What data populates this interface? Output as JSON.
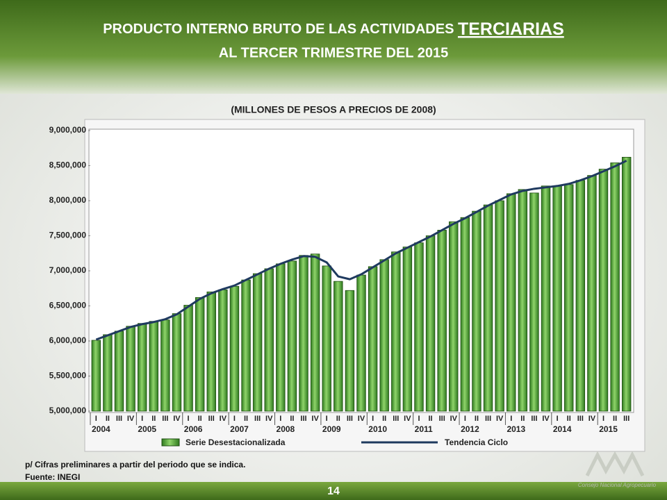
{
  "header": {
    "title_line1": "PRODUCTO INTERNO BRUTO DE LAS ACTIVIDADES",
    "title_emphasis": "TERCIARIAS",
    "title_line2": "AL TERCER TRIMESTRE DEL 2015"
  },
  "chart_data": {
    "type": "bar",
    "subtitle": "(MILLONES DE PESOS A PRECIOS DE 2008)",
    "categories": [
      "I",
      "II",
      "III",
      "IV",
      "I",
      "II",
      "III",
      "IV",
      "I",
      "II",
      "III",
      "IV",
      "I",
      "II",
      "III",
      "IV",
      "I",
      "II",
      "III",
      "IV",
      "I",
      "II",
      "III",
      "IV",
      "I",
      "II",
      "III",
      "IV",
      "I",
      "II",
      "III",
      "IV",
      "I",
      "II",
      "III",
      "IV",
      "I",
      "II",
      "III",
      "IV",
      "I",
      "II",
      "III",
      "IV",
      "I",
      "II",
      "III"
    ],
    "years": [
      "2004",
      "2005",
      "2006",
      "2007",
      "2008",
      "2009",
      "2010",
      "2011",
      "2012",
      "2013",
      "2014",
      "2015"
    ],
    "series": [
      {
        "name": "Serie Desestacionalizada",
        "type": "bar",
        "color": "#4a9a2e",
        "values": [
          6010000,
          6090000,
          6140000,
          6210000,
          6250000,
          6280000,
          6300000,
          6390000,
          6510000,
          6620000,
          6700000,
          6730000,
          6780000,
          6870000,
          6960000,
          7030000,
          7100000,
          7140000,
          7220000,
          7240000,
          7070000,
          6850000,
          6720000,
          6940000,
          7060000,
          7160000,
          7270000,
          7340000,
          7400000,
          7500000,
          7580000,
          7700000,
          7760000,
          7850000,
          7940000,
          8000000,
          8100000,
          8160000,
          8110000,
          8210000,
          8210000,
          8230000,
          8290000,
          8360000,
          8450000,
          8540000,
          8620000
        ]
      },
      {
        "name": "Tendencia Ciclo",
        "type": "line",
        "color": "#1f3a5f",
        "values": [
          6020000,
          6080000,
          6140000,
          6200000,
          6240000,
          6270000,
          6310000,
          6380000,
          6490000,
          6600000,
          6680000,
          6740000,
          6790000,
          6870000,
          6950000,
          7030000,
          7100000,
          7160000,
          7210000,
          7200000,
          7120000,
          6920000,
          6880000,
          6950000,
          7050000,
          7150000,
          7250000,
          7330000,
          7410000,
          7490000,
          7580000,
          7670000,
          7750000,
          7840000,
          7930000,
          8010000,
          8090000,
          8140000,
          8170000,
          8190000,
          8210000,
          8240000,
          8290000,
          8350000,
          8420000,
          8490000,
          8570000
        ]
      }
    ],
    "ylim": [
      5000000,
      9000000
    ],
    "yticks": [
      {
        "value": 5000000,
        "label": "5,000,000"
      },
      {
        "value": 5500000,
        "label": "5,500,000"
      },
      {
        "value": 6000000,
        "label": "6,000,000"
      },
      {
        "value": 6500000,
        "label": "6,500,000"
      },
      {
        "value": 7000000,
        "label": "7,000,000"
      },
      {
        "value": 7500000,
        "label": "7,500,000"
      },
      {
        "value": 8000000,
        "label": "8,000,000"
      },
      {
        "value": 8500000,
        "label": "8,500,000"
      },
      {
        "value": 9000000,
        "label": "9,000,000"
      }
    ],
    "grid": false
  },
  "footer": {
    "note": "p/ Cifras preliminares a partir del periodo que se indica.",
    "source": "Fuente: INEGI",
    "page": "14",
    "logo": "Consejo Nacional Agropecuario"
  }
}
